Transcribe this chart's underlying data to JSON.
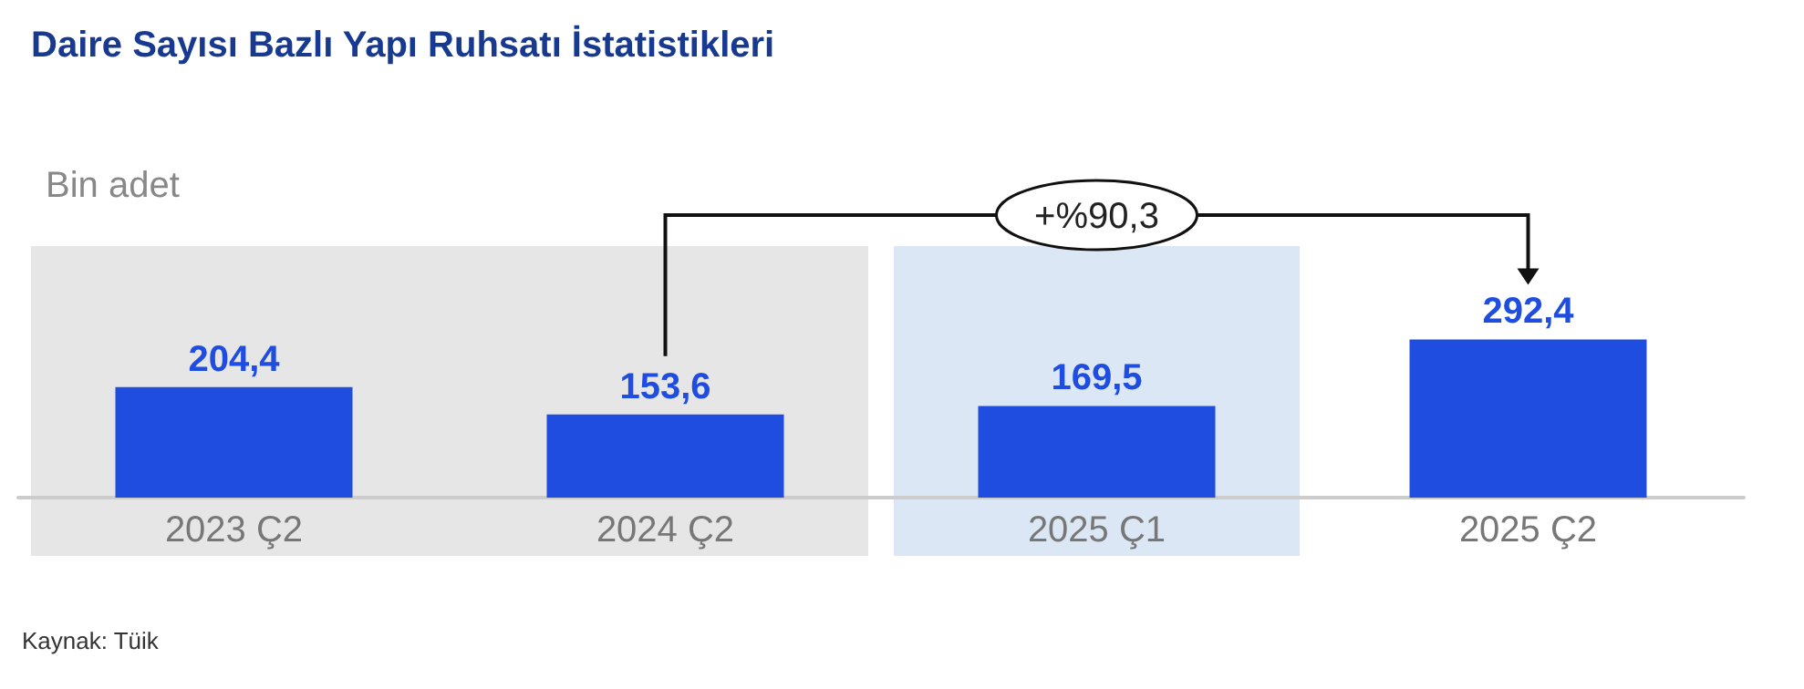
{
  "chart_data": {
    "type": "bar",
    "title": "Daire Sayısı Bazlı Yapı Ruhsatı İstatistikleri",
    "ylabel": "Bin adet",
    "categories": [
      "2023 Ç2",
      "2024 Ç2",
      "2025 Ç1",
      "2025 Ç2"
    ],
    "values": [
      204.4,
      153.6,
      169.5,
      292.4
    ],
    "color": "#1f4de0",
    "value_labels": [
      "204,4",
      "153,6",
      "169,5",
      "292,4"
    ],
    "bands": [
      {
        "axis": "x",
        "from": "2023 Ç2",
        "to": "2024 Ç2",
        "color": "#e6e6e6"
      },
      {
        "axis": "x",
        "from": "2025 Ç1",
        "to": "2025 Ç1",
        "color": "#dbe7f5"
      }
    ],
    "annotations": [
      "+%90,3",
      "Kaynak: Tüik"
    ]
  }
}
